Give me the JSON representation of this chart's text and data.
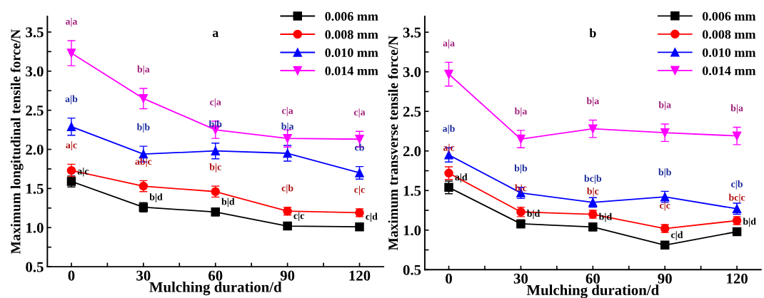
{
  "chart_data": [
    {
      "type": "line",
      "title": "a",
      "xlabel": "Mulching duration/d",
      "ylabel": "Maximum longitudinal tensile force/N",
      "x": [
        0,
        30,
        60,
        90,
        120
      ],
      "xlim": [
        -10,
        130
      ],
      "ylim": [
        0.5,
        3.7
      ],
      "xticks": [
        0,
        {
          "value": 15,
          "label": null
        },
        30,
        {
          "value": 45,
          "label": null
        },
        60,
        {
          "value": 75,
          "label": null
        },
        90,
        {
          "value": 105,
          "label": null
        },
        120
      ],
      "yticks": [
        {
          "value": 0.5,
          "label": "0.5"
        },
        {
          "value": 0.75,
          "label": null
        },
        {
          "value": 1,
          "label": "1.0"
        },
        {
          "value": 1.25,
          "label": null
        },
        {
          "value": 1.5,
          "label": "1.5"
        },
        {
          "value": 1.75,
          "label": null
        },
        {
          "value": 2,
          "label": "2.0"
        },
        {
          "value": 2.25,
          "label": null
        },
        {
          "value": 2.5,
          "label": "2.5"
        },
        {
          "value": 2.75,
          "label": null
        },
        {
          "value": 3,
          "label": "3.0"
        },
        {
          "value": 3.25,
          "label": null
        },
        {
          "value": 3.5,
          "label": "3.5"
        }
      ],
      "legend": "top right",
      "series": [
        {
          "name": "0.006 mm",
          "color": "#000000",
          "marker": "square",
          "values": [
            1.59,
            1.26,
            1.2,
            1.02,
            1.01
          ],
          "errors": [
            0.07,
            0.06,
            0.05,
            0.04,
            0.04
          ]
        },
        {
          "name": "0.008 mm",
          "color": "#ff0000",
          "marker": "circle",
          "values": [
            1.73,
            1.53,
            1.46,
            1.21,
            1.19
          ],
          "errors": [
            0.08,
            0.07,
            0.07,
            0.05,
            0.05
          ]
        },
        {
          "name": "0.010 mm",
          "color": "#0000ff",
          "marker": "triangle",
          "values": [
            2.29,
            1.94,
            1.98,
            1.95,
            1.7
          ],
          "errors": [
            0.11,
            0.1,
            0.1,
            0.1,
            0.08
          ]
        },
        {
          "name": "0.014 mm",
          "color": "#ff00ff",
          "marker": "triangle_down",
          "values": [
            3.23,
            2.65,
            2.25,
            2.14,
            2.13
          ],
          "errors": [
            0.16,
            0.13,
            0.11,
            0.11,
            0.1
          ]
        }
      ],
      "annotations": [
        {
          "text": "a|a",
          "x": 0,
          "y": 3.23
        },
        {
          "text": "b|a",
          "x": 30,
          "y": 2.65
        },
        {
          "text": "c|a",
          "x": 60,
          "y": 2.25
        },
        {
          "text": "c|a",
          "x": 90,
          "y": 2.14
        },
        {
          "text": "c|a",
          "x": 120,
          "y": 2.13
        },
        {
          "text": "a|b",
          "x": 0,
          "y": 2.29
        },
        {
          "text": "b|b",
          "x": 30,
          "y": 1.94
        },
        {
          "text": "b|b",
          "x": 60,
          "y": 1.98
        },
        {
          "text": "b|a",
          "x": 90,
          "y": 1.95
        },
        {
          "text": "cb",
          "x": 120,
          "y": 1.7
        },
        {
          "text": "a|c",
          "x": 0,
          "y": 1.73
        },
        {
          "text": "ab|c",
          "x": 30,
          "y": 1.53
        },
        {
          "text": "b|c",
          "x": 60,
          "y": 1.46
        },
        {
          "text": "c|b",
          "x": 90,
          "y": 1.21
        },
        {
          "text": "c|c",
          "x": 120,
          "y": 1.19
        },
        {
          "text": "a|c",
          "x": 0,
          "y": 1.59
        },
        {
          "text": "b|d",
          "x": 30,
          "y": 1.26
        },
        {
          "text": "b|d",
          "x": 60,
          "y": 1.2
        },
        {
          "text": "c|c",
          "x": 90,
          "y": 1.02
        },
        {
          "text": "c|d",
          "x": 120,
          "y": 1.01
        }
      ]
    },
    {
      "type": "line",
      "title": "b",
      "xlabel": "Mulching duration/d",
      "ylabel": "Maximum transverse tensile force/N",
      "x": [
        0,
        30,
        60,
        90,
        120
      ],
      "xlim": [
        -10,
        130
      ],
      "ylim": [
        0.5,
        3.7
      ],
      "xticks": [
        0,
        {
          "value": 15,
          "label": null
        },
        30,
        {
          "value": 45,
          "label": null
        },
        60,
        {
          "value": 75,
          "label": null
        },
        90,
        {
          "value": 105,
          "label": null
        },
        120
      ],
      "yticks": [
        {
          "value": 0.5,
          "label": "0.5"
        },
        {
          "value": 0.75,
          "label": null
        },
        {
          "value": 1,
          "label": "1.0"
        },
        {
          "value": 1.25,
          "label": null
        },
        {
          "value": 1.5,
          "label": "1.5"
        },
        {
          "value": 1.75,
          "label": null
        },
        {
          "value": 2,
          "label": "2.0"
        },
        {
          "value": 2.25,
          "label": null
        },
        {
          "value": 2.5,
          "label": "2.5"
        },
        {
          "value": 2.75,
          "label": null
        },
        {
          "value": 3,
          "label": "3.0"
        },
        {
          "value": 3.25,
          "label": null
        },
        {
          "value": 3.5,
          "label": "3.5"
        }
      ],
      "legend": "top right",
      "series": [
        {
          "name": "0.006 mm",
          "color": "#000000",
          "marker": "square",
          "values": [
            1.54,
            1.08,
            1.04,
            0.81,
            0.98
          ],
          "errors": [
            0.08,
            0.05,
            0.05,
            0.02,
            0.04
          ]
        },
        {
          "name": "0.008 mm",
          "color": "#ff0000",
          "marker": "circle",
          "values": [
            1.72,
            1.23,
            1.2,
            1.02,
            1.12
          ],
          "errors": [
            0.08,
            0.06,
            0.05,
            0.05,
            0.05
          ]
        },
        {
          "name": "0.010 mm",
          "color": "#0000ff",
          "marker": "triangle",
          "values": [
            1.95,
            1.47,
            1.35,
            1.42,
            1.27
          ],
          "errors": [
            0.09,
            0.07,
            0.06,
            0.07,
            0.07
          ]
        },
        {
          "name": "0.014 mm",
          "color": "#ff00ff",
          "marker": "triangle_down",
          "values": [
            2.97,
            2.15,
            2.28,
            2.23,
            2.19
          ],
          "errors": [
            0.15,
            0.11,
            0.11,
            0.11,
            0.11
          ]
        }
      ],
      "annotations": [
        {
          "text": "a|a",
          "x": 0,
          "y": 2.97
        },
        {
          "text": "b|a",
          "x": 30,
          "y": 2.15
        },
        {
          "text": "b|a",
          "x": 60,
          "y": 2.28
        },
        {
          "text": "b|a",
          "x": 90,
          "y": 2.23
        },
        {
          "text": "b|a",
          "x": 120,
          "y": 2.19
        },
        {
          "text": "a|b",
          "x": 0,
          "y": 1.95
        },
        {
          "text": "b|b",
          "x": 30,
          "y": 1.47
        },
        {
          "text": "bc|b",
          "x": 60,
          "y": 1.35
        },
        {
          "text": "b|b",
          "x": 90,
          "y": 1.42
        },
        {
          "text": "c|b",
          "x": 120,
          "y": 1.27
        },
        {
          "text": "a|c",
          "x": 0,
          "y": 1.72
        },
        {
          "text": "b|c",
          "x": 30,
          "y": 1.23
        },
        {
          "text": "b|c",
          "x": 60,
          "y": 1.2
        },
        {
          "text": "c|c",
          "x": 90,
          "y": 1.02
        },
        {
          "text": "bc|c",
          "x": 120,
          "y": 1.12
        },
        {
          "text": "a|d",
          "x": 0,
          "y": 1.54
        },
        {
          "text": "b|d",
          "x": 30,
          "y": 1.08
        },
        {
          "text": "b|d",
          "x": 60,
          "y": 1.04
        },
        {
          "text": "c|d",
          "x": 90,
          "y": 0.81
        },
        {
          "text": "b|d",
          "x": 120,
          "y": 0.98
        }
      ]
    }
  ]
}
